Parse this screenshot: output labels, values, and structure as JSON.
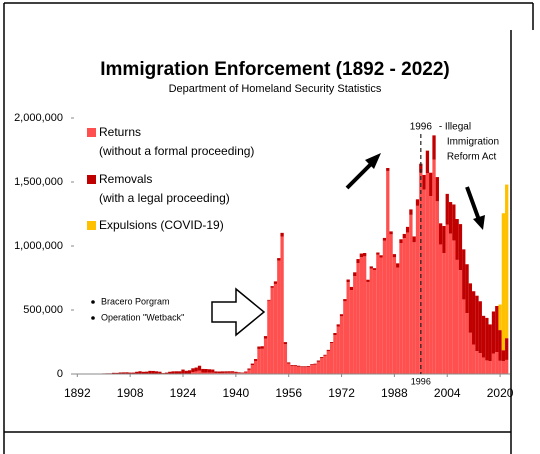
{
  "chart_data": {
    "type": "stacked-bar",
    "title": "Immigration Enforcement (1892 - 2022)",
    "subtitle": "Department of Homeland Security Statistics",
    "x": [
      1892,
      1893,
      1894,
      1895,
      1896,
      1897,
      1898,
      1899,
      1900,
      1901,
      1902,
      1903,
      1904,
      1905,
      1906,
      1907,
      1908,
      1909,
      1910,
      1911,
      1912,
      1913,
      1914,
      1915,
      1916,
      1917,
      1918,
      1919,
      1920,
      1921,
      1922,
      1923,
      1924,
      1925,
      1926,
      1927,
      1928,
      1929,
      1930,
      1931,
      1932,
      1933,
      1934,
      1935,
      1936,
      1937,
      1938,
      1939,
      1940,
      1941,
      1942,
      1943,
      1944,
      1945,
      1946,
      1947,
      1948,
      1949,
      1950,
      1951,
      1952,
      1953,
      1954,
      1955,
      1956,
      1957,
      1958,
      1959,
      1960,
      1961,
      1962,
      1963,
      1964,
      1965,
      1966,
      1967,
      1968,
      1969,
      1970,
      1971,
      1972,
      1973,
      1974,
      1975,
      1976,
      1977,
      1978,
      1979,
      1980,
      1981,
      1982,
      1983,
      1984,
      1985,
      1986,
      1987,
      1988,
      1989,
      1990,
      1991,
      1992,
      1993,
      1994,
      1995,
      1996,
      1997,
      1998,
      1999,
      2000,
      2001,
      2002,
      2003,
      2004,
      2005,
      2006,
      2007,
      2008,
      2009,
      2010,
      2011,
      2012,
      2013,
      2014,
      2015,
      2016,
      2017,
      2018,
      2019,
      2020,
      2021,
      2022
    ],
    "series": [
      {
        "name": "Returns",
        "note": "(without a formal proceeding)",
        "color": "#ff5050",
        "values": [
          0,
          0,
          0,
          0,
          0,
          0,
          0,
          0,
          0,
          0,
          0,
          0,
          0,
          0,
          0,
          0,
          0,
          0,
          0,
          0,
          0,
          0,
          0,
          0,
          0,
          0,
          0,
          0,
          0,
          0,
          0,
          0,
          0,
          0,
          0,
          15012,
          19946,
          25888,
          11387,
          11719,
          10775,
          10347,
          8010,
          7978,
          8251,
          8788,
          9278,
          10166,
          8594,
          6531,
          6904,
          11947,
          32270,
          69490,
          101945,
          195880,
          197184,
          276297,
          572531,
          673169,
          703778,
          885587,
          1074277,
          232769,
          80891,
          63379,
          60600,
          56610,
          52796,
          52383,
          54164,
          69392,
          73042,
          95263,
          123683,
          142470,
          179952,
          240958,
          303348,
          370074,
          450927,
          568005,
          718740,
          655814,
          765094,
          867015,
          912694,
          919370,
          719211,
          823875,
          812572,
          931600,
          909833,
          1041296,
          1586320,
          1091203,
          911790,
          830890,
          1022533,
          1061105,
          1105829,
          1243410,
          1029107,
          1313764,
          1573428,
          1440684,
          1570127,
          1389455,
          1675876,
          1349371,
          1012116,
          945294,
          1166576,
          1096920,
          1043381,
          891390,
          811263,
          582596,
          475720,
          322098,
          230360,
          178691,
          163245,
          129122,
          106167,
          100229,
          159856,
          171463,
          103000,
          100000,
          110000
        ]
      },
      {
        "name": "Removals",
        "note": "(with a legal proceeding)",
        "color": "#c00000",
        "values": [
          2801,
          1630,
          2167,
          2596,
          3037,
          1880,
          3229,
          3798,
          4602,
          5429,
          5439,
          9316,
          8773,
          11879,
          12636,
          13064,
          10902,
          11113,
          17401,
          21513,
          17173,
          18446,
          24416,
          23918,
          21174,
          17773,
          6977,
          10902,
          17495,
          20789,
          21283,
          21211,
          34651,
          25082,
          29142,
          29441,
          30464,
          38649,
          28308,
          27360,
          26269,
          24535,
          12187,
          11605,
          12320,
          12059,
          11926,
          11367,
          8746,
          6249,
          4258,
          7434,
          10789,
          11914,
          14915,
          18679,
          19782,
          19958,
          6567,
          13484,
          19648,
          19900,
          28389,
          16396,
          9791,
          6597,
          8463,
          8104,
          7140,
          7575,
          7489,
          7233,
          7722,
          9960,
          8726,
          7854,
          8637,
          9039,
          16893,
          17680,
          16101,
          17181,
          19413,
          24432,
          29286,
          30987,
          28370,
          25907,
          17379,
          16929,
          14522,
          17513,
          17681,
          21806,
          23119,
          22830,
          24815,
          33753,
          30039,
          33189,
          43671,
          42542,
          45674,
          50924,
          69680,
          114432,
          174813,
          183114,
          188467,
          189026,
          165168,
          211098,
          240665,
          246431,
          280974,
          319382,
          359795,
          391341,
          381738,
          386020,
          416324,
          433034,
          405090,
          325328,
          332227,
          287093,
          328716,
          359885,
          240000,
          86000,
          170000
        ]
      },
      {
        "name": "Expulsions (COVID-19)",
        "color": "#ffc000",
        "values": [
          0,
          0,
          0,
          0,
          0,
          0,
          0,
          0,
          0,
          0,
          0,
          0,
          0,
          0,
          0,
          0,
          0,
          0,
          0,
          0,
          0,
          0,
          0,
          0,
          0,
          0,
          0,
          0,
          0,
          0,
          0,
          0,
          0,
          0,
          0,
          0,
          0,
          0,
          0,
          0,
          0,
          0,
          0,
          0,
          0,
          0,
          0,
          0,
          0,
          0,
          0,
          0,
          0,
          0,
          0,
          0,
          0,
          0,
          0,
          0,
          0,
          0,
          0,
          0,
          0,
          0,
          0,
          0,
          0,
          0,
          0,
          0,
          0,
          0,
          0,
          0,
          0,
          0,
          0,
          0,
          0,
          0,
          0,
          0,
          0,
          0,
          0,
          0,
          0,
          0,
          0,
          0,
          0,
          0,
          0,
          0,
          0,
          0,
          0,
          0,
          0,
          0,
          0,
          0,
          0,
          0,
          0,
          0,
          0,
          0,
          0,
          0,
          0,
          0,
          0,
          0,
          0,
          0,
          0,
          0,
          0,
          0,
          0,
          0,
          0,
          0,
          0,
          0,
          200000,
          1070000,
          1200000
        ]
      }
    ],
    "xlim": [
      1891,
      2023
    ],
    "xticks": [
      1892,
      1908,
      1924,
      1940,
      1956,
      1972,
      1988,
      2004,
      2020
    ],
    "ylim": [
      0,
      2000000
    ],
    "yticks": [
      0,
      {
        "value": 500000,
        "label": "500,000"
      },
      {
        "value": 1000000,
        "label": "1,000,000"
      },
      {
        "value": 1500000,
        "label": "1,500,000"
      },
      {
        "value": 2000000,
        "label": "2,000,000"
      }
    ],
    "grid": false,
    "legend": "upper left",
    "reference_line": {
      "x": 1996,
      "label": "1996",
      "bottom_label": "1996",
      "text": [
        "- Illegal",
        "Immigration",
        "Reform Act"
      ]
    },
    "annotations": [
      "Bracero Porgram",
      "Operation \"Wetback\""
    ]
  }
}
